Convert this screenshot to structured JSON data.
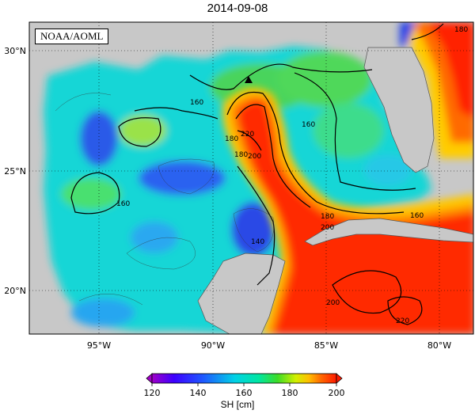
{
  "title": "2014-09-08",
  "agency": "NOAA/AOML",
  "map": {
    "lon_range": [
      -98,
      -78.5
    ],
    "lat_range": [
      18,
      31
    ],
    "lon_ticks": [
      "95°W",
      "90°W",
      "85°W",
      "80°W"
    ],
    "lat_ticks": [
      "30°N",
      "25°N",
      "20°N"
    ],
    "contour_labels": [
      "160",
      "160",
      "160",
      "180",
      "180",
      "180",
      "200",
      "220",
      "140",
      "180",
      "200",
      "200",
      "220",
      "160"
    ],
    "marker": "black-triangle"
  },
  "colorbar": {
    "label": "SH [cm]",
    "ticks": [
      "120",
      "140",
      "160",
      "180",
      "200"
    ],
    "min": 115,
    "max": 205
  },
  "colors": {
    "land": "#c8c8c8",
    "low": "#2a3cd6",
    "mid": "#19d9d3",
    "high": "#ff1a00"
  }
}
